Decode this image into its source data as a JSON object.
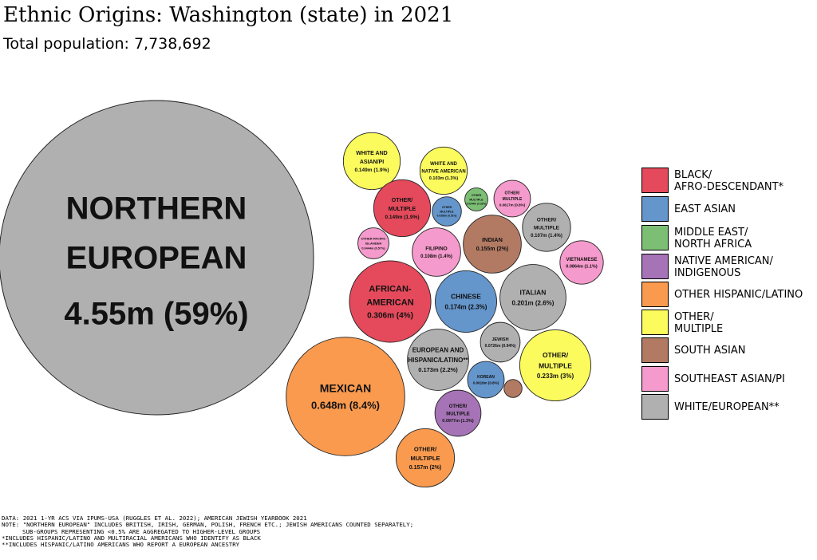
{
  "title": "Ethnic Origins: Washington (state) in 2021",
  "subtitle": "Total population: 7,738,692",
  "colors": {
    "black": "#e44a5b",
    "east_asian": "#6495cb",
    "mena": "#7cbf74",
    "native": "#a573b6",
    "hispanic": "#f99a4f",
    "other": "#fbfb5d",
    "south_asian": "#b27a63",
    "se_asian": "#f59acc",
    "white": "#b0b0b0"
  },
  "legend": [
    {
      "key": "black",
      "label": "BLACK/\nAFRO-DESCENDANT*",
      "color": "#e44a5b"
    },
    {
      "key": "east_asian",
      "label": "EAST ASIAN",
      "color": "#6495cb"
    },
    {
      "key": "mena",
      "label": "MIDDLE EAST/\nNORTH AFRICA",
      "color": "#7cbf74"
    },
    {
      "key": "native",
      "label": "NATIVE AMERICAN/\nINDIGENOUS",
      "color": "#a573b6"
    },
    {
      "key": "hispanic",
      "label": "OTHER HISPANIC/LATINO",
      "color": "#f99a4f"
    },
    {
      "key": "other",
      "label": "OTHER/\nMULTIPLE",
      "color": "#fbfb5d"
    },
    {
      "key": "south_asian",
      "label": "SOUTH ASIAN",
      "color": "#b27a63"
    },
    {
      "key": "se_asian",
      "label": "SOUTHEAST ASIAN/PI",
      "color": "#f59acc"
    },
    {
      "key": "white",
      "label": "WHITE/EUROPEAN**",
      "color": "#b0b0b0"
    }
  ],
  "chart_data": {
    "type": "bubble",
    "title": "Ethnic Origins: Washington (state) in 2021",
    "subtitle": "Total population: 7,738,692",
    "total_population": 7738692,
    "series": [
      {
        "name": "NORTHERN EUROPEAN",
        "group": "white",
        "value": 4550000,
        "value_label": "4.55m",
        "pct_label": "59%"
      },
      {
        "name": "MEXICAN",
        "group": "hispanic",
        "value": 648000,
        "value_label": "0.648m",
        "pct_label": "8.4%"
      },
      {
        "name": "AFRICAN-AMERICAN",
        "group": "black",
        "value": 306000,
        "value_label": "0.306m",
        "pct_label": "4%"
      },
      {
        "name": "OTHER/MULTIPLE",
        "group": "other",
        "value": 233000,
        "value_label": "0.233m",
        "pct_label": "3%"
      },
      {
        "name": "ITALIAN",
        "group": "white",
        "value": 201000,
        "value_label": "0.201m",
        "pct_label": "2.6%"
      },
      {
        "name": "CHINESE",
        "group": "east_asian",
        "value": 174000,
        "value_label": "0.174m",
        "pct_label": "2.3%"
      },
      {
        "name": "EUROPEAN AND HISPANIC/LATINO**",
        "group": "white",
        "value": 173000,
        "value_label": "0.173m",
        "pct_label": "2.2%"
      },
      {
        "name": "OTHER/MULTIPLE",
        "group": "hispanic",
        "value": 157000,
        "value_label": "0.157m",
        "pct_label": "2%"
      },
      {
        "name": "INDIAN",
        "group": "south_asian",
        "value": 155000,
        "value_label": "0.155m",
        "pct_label": "2%"
      },
      {
        "name": "WHITE AND ASIAN/PI",
        "group": "other",
        "value": 149000,
        "value_label": "0.149m",
        "pct_label": "1.9%"
      },
      {
        "name": "OTHER/MULTIPLE",
        "group": "black",
        "value": 149000,
        "value_label": "0.149m",
        "pct_label": "1.9%"
      },
      {
        "name": "FILIPINO",
        "group": "se_asian",
        "value": 108000,
        "value_label": "0.108m",
        "pct_label": "1.4%"
      },
      {
        "name": "OTHER/MULTIPLE",
        "group": "white",
        "value": 107000,
        "value_label": "0.107m",
        "pct_label": "1.4%"
      },
      {
        "name": "WHITE AND NATIVE AMERICAN",
        "group": "other",
        "value": 103000,
        "value_label": "0.103m",
        "pct_label": "1.3%"
      },
      {
        "name": "OTHER/MULTIPLE",
        "group": "native",
        "value": 97700,
        "value_label": "0.0977m",
        "pct_label": "1.3%"
      },
      {
        "name": "VIETNAMESE",
        "group": "se_asian",
        "value": 86400,
        "value_label": "0.0864m",
        "pct_label": "1.1%"
      },
      {
        "name": "JEWISH",
        "group": "white",
        "value": 72600,
        "value_label": "0.0726m",
        "pct_label": "0.94%"
      },
      {
        "name": "KOREAN",
        "group": "east_asian",
        "value": 61800,
        "value_label": "0.0618m",
        "pct_label": "0.8%"
      },
      {
        "name": "OTHER/MULTIPLE",
        "group": "se_asian",
        "value": 61700,
        "value_label": "0.0617m",
        "pct_label": "0.8%"
      },
      {
        "name": "OTHER PACIFIC ISLANDER",
        "group": "se_asian",
        "value": 44400,
        "value_label": "0.0444m",
        "pct_label": "0.57%"
      },
      {
        "name": "OTHER/MULTIPLE",
        "group": "east_asian",
        "value": 39300,
        "value_label": "0.0393m",
        "pct_label": "0.51%"
      },
      {
        "name": "OTHER/MULTIPLE",
        "group": "mena",
        "value": 24400,
        "value_label": "0.0244m",
        "pct_label": "0.32%"
      },
      {
        "name": "",
        "group": "south_asian",
        "value": 15000,
        "value_label": "",
        "pct_label": ""
      }
    ]
  },
  "footnotes": [
    "DATA: 2021 1-YR ACS VIA IPUMS-USA (RUGGLES ET AL. 2022); AMERICAN JEWISH YEARBOOK 2021",
    "NOTE: \"NORTHERN EUROPEAN\" INCLUDES BRITISH, IRISH, GERMAN, POLISH, FRENCH ETC.; JEWISH AMERICANS COUNTED SEPARATELY;",
    "SUB-GROUPS REPRESENTING <0.5% ARE AGGREGATED TO HIGHER-LEVEL GROUPS",
    "*INCLUDES HISPANIC/LATINO AND MULTIRACIAL AMERICANS WHO IDENTIFY AS BLACK",
    "**INCLUDES HISPANIC/LATINO AMERICANS WHO REPORT A EUROPEAN ANCESTRY"
  ]
}
